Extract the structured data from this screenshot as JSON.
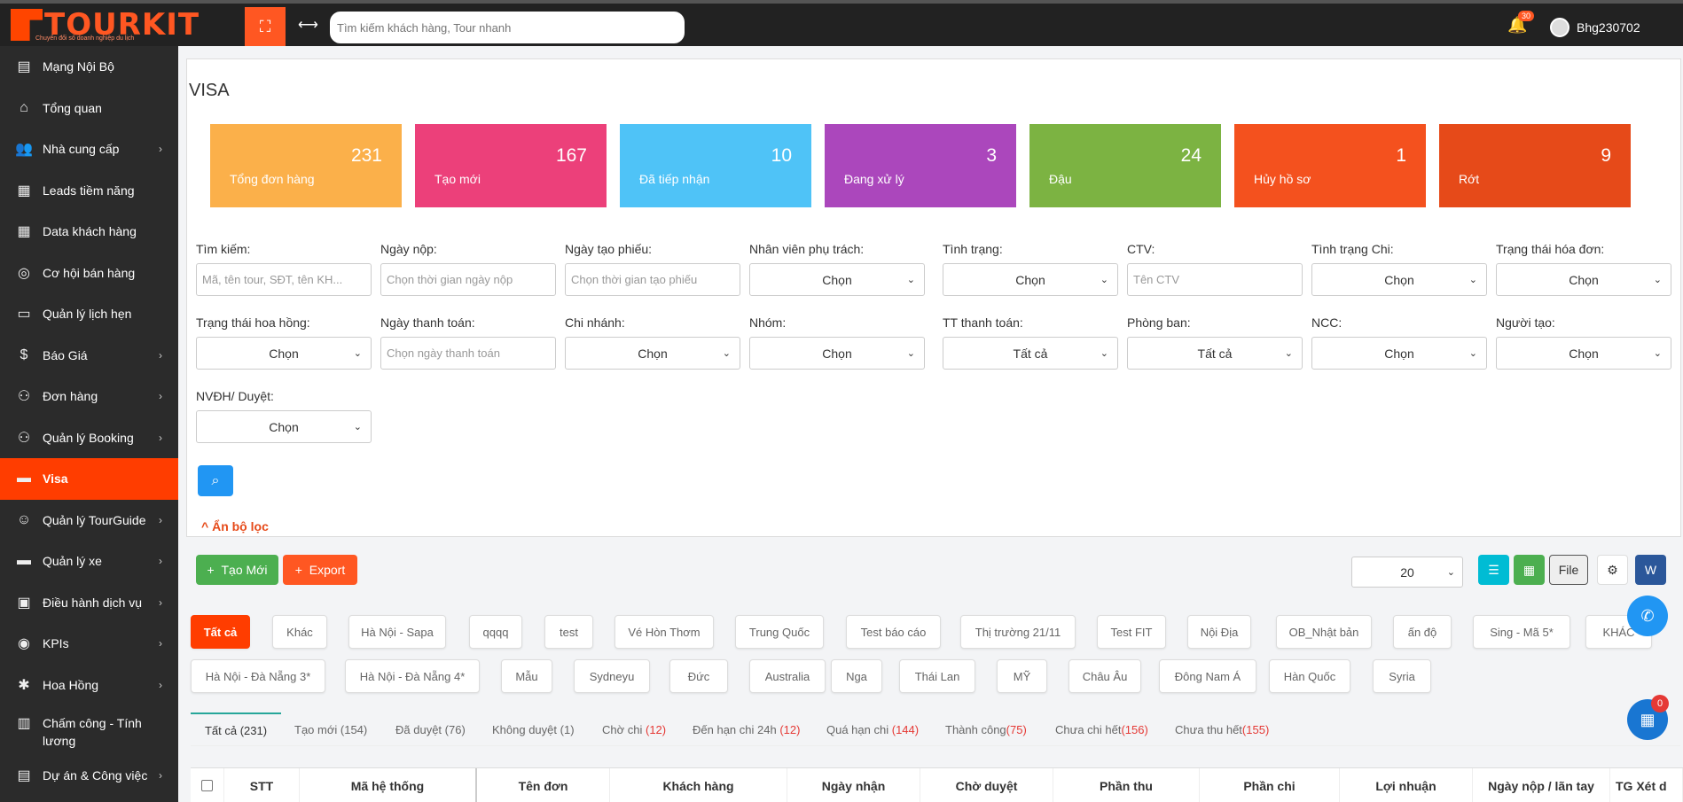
{
  "header": {
    "logo_text": "TOURKIT",
    "logo_tagline": "Chuyển đổi số doanh nghiệp du lịch",
    "search_placeholder": "Tìm kiếm khách hàng, Tour nhanh",
    "notification_count": "30",
    "username": "Bhg230702"
  },
  "sidebar": {
    "items": [
      {
        "label": "Mạng Nội Bộ",
        "icon": "newspaper-icon"
      },
      {
        "label": "Tổng quan",
        "icon": "home-icon"
      },
      {
        "label": "Nhà cung cấp",
        "icon": "users-icon"
      },
      {
        "label": "Leads tiềm năng",
        "icon": "money-icon"
      },
      {
        "label": "Data khách hàng",
        "icon": "money-stack-icon"
      },
      {
        "label": "Cơ hội bán hàng",
        "icon": "opportunity-icon"
      },
      {
        "label": "Quản lý lịch hẹn",
        "icon": "cskh-icon"
      },
      {
        "label": "Báo Giá",
        "icon": "dollar-doc-icon"
      },
      {
        "label": "Đơn hàng",
        "icon": "sitemap-icon"
      },
      {
        "label": "Quản lý Booking",
        "icon": "sitemap-icon"
      },
      {
        "label": "Visa",
        "icon": "visa-icon"
      },
      {
        "label": "Quản lý TourGuide",
        "icon": "guide-icon"
      },
      {
        "label": "Quản lý xe",
        "icon": "bus-icon"
      },
      {
        "label": "Điều hành dịch vụ",
        "icon": "chat-icon"
      },
      {
        "label": "KPIs",
        "icon": "globe-icon"
      },
      {
        "label": "Hoa Hồng",
        "icon": "percent-icon"
      },
      {
        "label": "Chấm công - Tính lương",
        "icon": "clipboard-icon"
      },
      {
        "label": "Dự án & Công việc",
        "icon": "folder-icon"
      }
    ]
  },
  "page": {
    "title": "VISA",
    "stats": [
      {
        "value": "231",
        "label": "Tổng đơn hàng",
        "color": "#fbb04a"
      },
      {
        "value": "167",
        "label": "Tạo mới",
        "color": "#ec407a"
      },
      {
        "value": "10",
        "label": "Đã tiếp nhận",
        "color": "#4fc3f7"
      },
      {
        "value": "3",
        "label": "Đang xử lý",
        "color": "#ab47bc"
      },
      {
        "value": "24",
        "label": "Đậu",
        "color": "#7cb342"
      },
      {
        "value": "1",
        "label": "Hủy hồ sơ",
        "color": "#f4511e"
      },
      {
        "value": "9",
        "label": "Rớt",
        "color": "#e64a19"
      }
    ]
  },
  "filters": {
    "row1": [
      {
        "label": "Tìm kiếm:",
        "value": "Mã, tên tour, SĐT, tên KH..."
      },
      {
        "label": "Ngày nộp:",
        "value": "Chọn thời gian ngày nộp"
      },
      {
        "label": "Ngày tạo phiếu:",
        "value": "Chọn thời gian tạo phiếu"
      },
      {
        "label": "Nhân viên phụ trách:",
        "value": "Chọn"
      },
      {
        "label": "Tình trạng:",
        "value": "Chọn"
      },
      {
        "label": "CTV:",
        "value": "Tên CTV"
      },
      {
        "label": "Tình trạng Chi:",
        "value": "Chọn"
      },
      {
        "label": "Trạng thái hóa đơn:",
        "value": "Chọn"
      }
    ],
    "row2": [
      {
        "label": "Trạng thái hoa hồng:",
        "value": "Chọn"
      },
      {
        "label": "Ngày thanh toán:",
        "value": "Chọn ngày thanh toán"
      },
      {
        "label": "Chi nhánh:",
        "value": "Chọn"
      },
      {
        "label": "Nhóm:",
        "value": "Chọn"
      },
      {
        "label": "TT thanh toán:",
        "value": "Tất cả"
      },
      {
        "label": "Phòng ban:",
        "value": "Tất cả"
      },
      {
        "label": "NCC:",
        "value": "Chọn"
      },
      {
        "label": "Người tạo:",
        "value": "Chọn"
      }
    ],
    "row3": [
      {
        "label": "NVĐH/ Duyệt:",
        "value": "Chọn"
      }
    ],
    "hide_label": "Ẩn bộ lọc"
  },
  "toolbar": {
    "new_label": "Tạo Mới",
    "export_label": "Export",
    "page_size": "20",
    "file_label": "File"
  },
  "tags": {
    "row1": [
      "Tất cả",
      "Khác",
      "Hà Nội - Sapa",
      "qqqq",
      "test",
      "Vé Hòn Thơm",
      "Trung Quốc",
      "Test báo cáo",
      "Thị trường 21/11",
      "Test FIT",
      "Nội Địa",
      "OB_Nhật bản",
      "ấn độ",
      "Sing - Mã 5*",
      "KHÁC"
    ],
    "row2": [
      "Hà Nội - Đà Nẵng 3*",
      "Hà Nội - Đà Nẵng 4*",
      "Mẫu",
      "Sydneyu",
      "Đức",
      "Australia",
      "Nga",
      "Thái Lan",
      "MỸ",
      "Châu Âu",
      "Đông Nam Á",
      "Hàn Quốc",
      "Syria"
    ]
  },
  "status_tabs": [
    {
      "label": "Tất cả",
      "count": "(231)"
    },
    {
      "label": "Tạo mới",
      "count": "(154)"
    },
    {
      "label": "Đã duyệt",
      "count": "(76)"
    },
    {
      "label": "Không duyệt",
      "count": "(1)"
    },
    {
      "label": "Chờ chi",
      "count": "(12)"
    },
    {
      "label": "Đến hạn chi 24h",
      "count": "(12)"
    },
    {
      "label": "Quá hạn chi",
      "count": "(144)"
    },
    {
      "label": "Thành công",
      "count": "(75)"
    },
    {
      "label": "Chưa chi hết",
      "count": "(156)"
    },
    {
      "label": "Chưa thu hết",
      "count": "(155)"
    }
  ],
  "table": {
    "headers": [
      "STT",
      "Mã hệ thống",
      "Tên đơn",
      "Khách hàng",
      "Ngày nhận",
      "Chờ duyệt",
      "Phần thu",
      "Phần chi",
      "Lợi nhuận",
      "Ngày nộp / lãn tay",
      "TG Xét d"
    ]
  },
  "floating": {
    "calendar_badge": "0"
  }
}
